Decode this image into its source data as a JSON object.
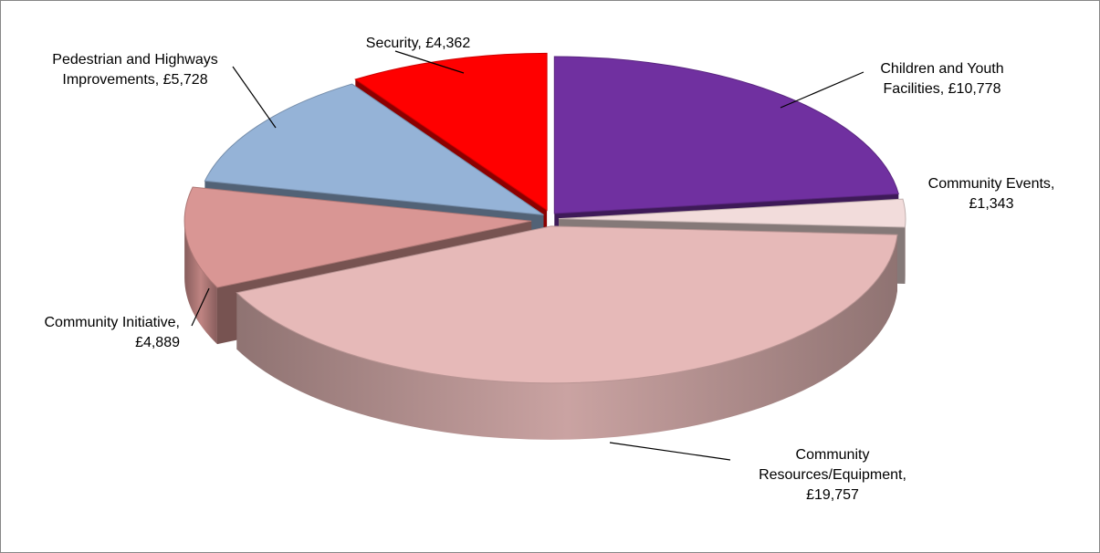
{
  "chart_data": {
    "type": "pie",
    "title": "",
    "legend": "none",
    "slices": [
      {
        "label_lines": [
          "Children and Youth",
          "Facilities, £10,778"
        ],
        "category": "Children and Youth Facilities",
        "value": 10778,
        "color": "#7030A0"
      },
      {
        "label_lines": [
          "Community Events,",
          "£1,343"
        ],
        "category": "Community Events",
        "value": 1343,
        "color": "#F2DCDB"
      },
      {
        "label_lines": [
          "Community",
          "Resources/Equipment,",
          "£19,757"
        ],
        "category": "Community Resources/Equipment",
        "value": 19757,
        "color": "#E6B9B8"
      },
      {
        "label_lines": [
          "Community Initiative,",
          "£4,889"
        ],
        "category": "Community Initiative",
        "value": 4889,
        "color": "#D99694"
      },
      {
        "label_lines": [
          "Pedestrian and Highways",
          "Improvements, £5,728"
        ],
        "category": "Pedestrian and Highways Improvements",
        "value": 5728,
        "color": "#95B3D7"
      },
      {
        "label_lines": [
          "Security, £4,362"
        ],
        "category": "Security",
        "value": 4362,
        "color": "#FF0000"
      }
    ]
  }
}
